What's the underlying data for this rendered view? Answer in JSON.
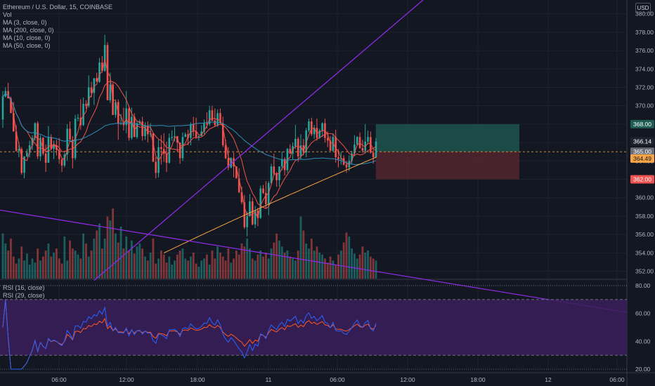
{
  "header": {
    "symbol_line": "Ethereum / U.S. Dollar, 15, COINBASE",
    "indicators": [
      "Vol",
      "MA (3, close, 0)",
      "MA (200, close, 0)",
      "MA (10, close, 0)",
      "MA (50, close, 0)"
    ],
    "rsi_indicators": [
      "RSI (16, close)",
      "RSI (29, close)"
    ],
    "currency": "USD"
  },
  "colors": {
    "background": "#131722",
    "up": "#26a69a",
    "down": "#ef5350",
    "ma3": "#ef5350",
    "ma10": "#f0534a",
    "ma50": "#2e8fb8",
    "ma200": "#f7a544",
    "trendline": "#8a2be2",
    "rsi_fill": "#3b1f5c",
    "rsi16": "#2962ff",
    "rsi29": "#ff5722",
    "target_zone": "#1f5c54",
    "stop_zone": "#5c2830"
  },
  "chart_data": [
    {
      "type": "candlestick",
      "title": "Ethereum / U.S. Dollar, 15, COINBASE",
      "y_axis": {
        "ticks": [
          "380.00",
          "378.00",
          "376.00",
          "374.00",
          "372.00",
          "370.00",
          "368.00",
          "366.00",
          "364.00",
          "362.00",
          "360.00",
          "358.00",
          "356.00",
          "354.00",
          "352.00"
        ],
        "range": [
          351.2,
          381.5
        ]
      },
      "x_axis": {
        "ticks": [
          "06:00",
          "12:00",
          "18:00",
          "11",
          "06:00",
          "12:00",
          "18:00",
          "12",
          "06:00"
        ]
      },
      "price_labels": [
        {
          "value": "368.00",
          "price": 368.0,
          "color": "#1f5c54"
        },
        {
          "value": "366.14",
          "price": 366.14,
          "color": "#1e222d"
        },
        {
          "value": "365.00",
          "price": 365.0,
          "color": "#6a6d78"
        },
        {
          "value": "364.49",
          "price": 364.49,
          "color": "#f7a544"
        },
        {
          "value": "362.00",
          "price": 362.0,
          "color": "#ef5350"
        }
      ],
      "position": {
        "entry": 365.0,
        "target": 368.0,
        "stop": 362.0
      },
      "trendlines": [
        {
          "from": [
            0,
            358.6
          ],
          "to": [
            126,
            352.6
          ]
        },
        {
          "from": [
            34,
            351.0
          ],
          "to": [
            126,
            373.9
          ]
        }
      ],
      "ohlc": [
        [
          368.5,
          371.0,
          367.6,
          371.6,
          366.8
        ],
        [
          371.0,
          371.6,
          370.9,
          372.0,
          370.2
        ],
        [
          371.6,
          370.8,
          370.8,
          372.5,
          369.4
        ],
        [
          370.8,
          369.2,
          369.2,
          371.0,
          368.7
        ],
        [
          369.2,
          367.2,
          367.2,
          370.4,
          366.9
        ],
        [
          367.2,
          365.1,
          365.0,
          367.9,
          364.4
        ],
        [
          365.1,
          365.3,
          364.4,
          366.0,
          363.8
        ],
        [
          365.3,
          362.7,
          362.5,
          365.5,
          362.0
        ],
        [
          362.7,
          364.5,
          362.1,
          364.5,
          361.0
        ],
        [
          364.5,
          364.9,
          364.4,
          365.3,
          364.0
        ],
        [
          364.9,
          365.7,
          364.4,
          366.2,
          363.8
        ],
        [
          365.7,
          366.5,
          365.2,
          366.8,
          363.9
        ],
        [
          366.5,
          368.1,
          366.2,
          368.2,
          365.2
        ],
        [
          368.1,
          364.5,
          364.2,
          368.3,
          363.9
        ],
        [
          364.5,
          366.5,
          364.0,
          366.8,
          363.3
        ],
        [
          366.5,
          364.8,
          364.6,
          366.6,
          364.4
        ],
        [
          364.8,
          363.8,
          362.8,
          365.8,
          362.6
        ],
        [
          363.8,
          366.6,
          363.8,
          367.8,
          363.1
        ],
        [
          366.6,
          365.3,
          365.3,
          366.9,
          365.0
        ],
        [
          365.3,
          365.7,
          364.2,
          366.2,
          363.9
        ],
        [
          365.7,
          365.2,
          364.6,
          366.3,
          362.8
        ],
        [
          365.2,
          364.2,
          363.7,
          366.5,
          362.1
        ],
        [
          364.2,
          363.5,
          362.8,
          364.2,
          362.3
        ],
        [
          363.5,
          364.7,
          363.3,
          364.9,
          363.0
        ],
        [
          364.7,
          367.5,
          364.0,
          368.0,
          363.5
        ],
        [
          367.5,
          366.3,
          366.3,
          368.3,
          366.0
        ],
        [
          366.3,
          364.3,
          363.2,
          366.7,
          362.9
        ],
        [
          364.3,
          368.6,
          364.1,
          369.0,
          363.9
        ],
        [
          368.6,
          368.7,
          368.3,
          369.1,
          367.9
        ],
        [
          368.7,
          367.9,
          367.4,
          370.7,
          367.2
        ],
        [
          367.9,
          370.2,
          367.8,
          370.9,
          367.6
        ],
        [
          370.2,
          370.0,
          369.7,
          370.6,
          369.5
        ],
        [
          370.0,
          372.0,
          369.8,
          373.3,
          369.6
        ],
        [
          372.0,
          371.4,
          370.9,
          372.6,
          370.7
        ],
        [
          371.4,
          373.0,
          370.1,
          373.0,
          369.7
        ],
        [
          373.0,
          372.6,
          372.6,
          373.6,
          371.5
        ],
        [
          372.6,
          374.7,
          372.5,
          375.2,
          372.2
        ],
        [
          374.7,
          373.8,
          373.6,
          375.4,
          373.5
        ],
        [
          373.8,
          376.6,
          373.7,
          377.7,
          373.1
        ],
        [
          376.6,
          370.6,
          370.6,
          376.9,
          370.3
        ],
        [
          370.6,
          372.3,
          370.3,
          373.6,
          368.3
        ],
        [
          372.3,
          369.0,
          369.0,
          372.5,
          368.3
        ],
        [
          369.0,
          370.4,
          368.7,
          370.7,
          368.0
        ],
        [
          370.4,
          368.1,
          366.3,
          370.7,
          365.9
        ],
        [
          368.1,
          368.1,
          367.9,
          369.1,
          367.8
        ],
        [
          368.1,
          367.9,
          367.3,
          369.8,
          366.8
        ],
        [
          367.9,
          369.7,
          367.0,
          371.6,
          366.5
        ],
        [
          369.7,
          366.5,
          366.2,
          370.0,
          366.0
        ],
        [
          366.5,
          368.8,
          366.3,
          369.8,
          366.2
        ],
        [
          368.8,
          366.6,
          366.6,
          369.2,
          366.2
        ],
        [
          366.6,
          368.1,
          366.4,
          368.4,
          366.3
        ],
        [
          368.1,
          368.3,
          367.9,
          368.5,
          367.3
        ],
        [
          368.3,
          366.7,
          366.2,
          368.8,
          364.7
        ],
        [
          366.7,
          367.8,
          366.3,
          368.2,
          365.7
        ],
        [
          367.8,
          366.9,
          366.0,
          368.3,
          365.2
        ],
        [
          366.9,
          367.0,
          366.6,
          368.1,
          366.4
        ],
        [
          367.0,
          363.9,
          363.9,
          367.0,
          362.7
        ],
        [
          363.9,
          362.7,
          362.1,
          364.4,
          360.5
        ],
        [
          362.7,
          365.5,
          362.2,
          366.3,
          362.1
        ],
        [
          365.5,
          365.3,
          363.6,
          366.8,
          363.5
        ],
        [
          365.3,
          364.8,
          363.9,
          367.0,
          363.5
        ],
        [
          364.8,
          363.8,
          362.8,
          366.1,
          362.0
        ],
        [
          363.8,
          366.5,
          363.7,
          367.0,
          363.5
        ],
        [
          366.5,
          366.6,
          366.2,
          367.3,
          365.4
        ],
        [
          366.6,
          366.7,
          366.1,
          367.7,
          365.7
        ],
        [
          366.7,
          366.0,
          365.0,
          366.7,
          364.1
        ],
        [
          366.0,
          364.3,
          363.7,
          366.0,
          363.4
        ],
        [
          364.3,
          366.6,
          364.0,
          367.1,
          363.9
        ],
        [
          366.6,
          366.9,
          366.7,
          367.1,
          366.2
        ],
        [
          366.9,
          366.5,
          365.7,
          367.4,
          365.2
        ],
        [
          366.5,
          368.0,
          365.7,
          368.2,
          364.3
        ],
        [
          368.0,
          367.2,
          366.7,
          368.8,
          366.3
        ],
        [
          367.2,
          366.6,
          366.4,
          368.7,
          366.1
        ],
        [
          366.6,
          366.7,
          366.2,
          366.8,
          365.8
        ],
        [
          366.7,
          367.2,
          366.7,
          367.9,
          365.4
        ],
        [
          367.2,
          368.1,
          366.9,
          368.5,
          366.5
        ],
        [
          368.1,
          368.0,
          367.5,
          369.3,
          367.2
        ],
        [
          368.0,
          369.5,
          367.8,
          370.0,
          367.4
        ],
        [
          369.5,
          368.4,
          368.3,
          370.0,
          368.0
        ],
        [
          368.4,
          367.9,
          367.7,
          369.7,
          367.5
        ],
        [
          367.9,
          369.2,
          367.7,
          369.6,
          367.6
        ],
        [
          369.2,
          368.1,
          368.0,
          369.7,
          366.9
        ],
        [
          368.1,
          365.7,
          365.5,
          368.8,
          365.3
        ],
        [
          365.7,
          364.3,
          364.2,
          366.3,
          364.1
        ],
        [
          364.3,
          363.3,
          363.0,
          365.5,
          362.6
        ],
        [
          363.3,
          364.3,
          363.2,
          364.4,
          363.1
        ],
        [
          364.3,
          363.4,
          362.2,
          364.9,
          361.4
        ],
        [
          363.4,
          362.1,
          362.1,
          363.4,
          361.3
        ],
        [
          362.1,
          360.6,
          360.5,
          363.2,
          360.1
        ],
        [
          360.6,
          359.5,
          359.3,
          361.2,
          357.3
        ],
        [
          359.5,
          356.8,
          356.6,
          360.3,
          356.4
        ],
        [
          356.8,
          358.0,
          355.8,
          358.5,
          355.5
        ],
        [
          358.0,
          359.6,
          357.9,
          360.4,
          357.4
        ],
        [
          359.6,
          357.1,
          357.0,
          360.0,
          356.6
        ],
        [
          357.1,
          358.6,
          356.7,
          359.1,
          356.5
        ],
        [
          358.6,
          357.8,
          356.9,
          358.9,
          356.7
        ],
        [
          357.8,
          361.0,
          357.7,
          361.3,
          356.6
        ],
        [
          361.0,
          360.5,
          360.4,
          361.4,
          360.2
        ],
        [
          360.5,
          359.3,
          358.8,
          361.8,
          358.7
        ],
        [
          359.3,
          361.6,
          358.1,
          361.8,
          357.7
        ],
        [
          361.6,
          363.4,
          361.4,
          363.7,
          360.7
        ],
        [
          363.4,
          362.6,
          362.4,
          364.8,
          362.1
        ],
        [
          362.6,
          361.9,
          361.2,
          362.8,
          361.0
        ],
        [
          361.9,
          363.4,
          361.2,
          363.4,
          360.9
        ],
        [
          363.4,
          364.2,
          363.0,
          365.0,
          362.7
        ],
        [
          364.2,
          363.0,
          362.4,
          364.4,
          362.1
        ],
        [
          363.0,
          365.3,
          362.7,
          365.4,
          362.1
        ],
        [
          365.3,
          364.8,
          364.8,
          365.8,
          364.6
        ],
        [
          364.8,
          365.6,
          364.1,
          366.0,
          363.4
        ],
        [
          365.6,
          366.4,
          365.3,
          367.9,
          364.9
        ],
        [
          366.4,
          364.5,
          363.9,
          366.6,
          363.8
        ],
        [
          364.5,
          365.7,
          364.2,
          366.9,
          363.6
        ],
        [
          365.7,
          364.9,
          364.6,
          366.4,
          364.3
        ],
        [
          364.9,
          367.3,
          364.4,
          367.6,
          363.5
        ],
        [
          367.3,
          368.3,
          367.1,
          368.6,
          365.8
        ],
        [
          368.3,
          366.9,
          366.7,
          368.7,
          366.5
        ],
        [
          366.9,
          367.6,
          366.4,
          367.9,
          366.2
        ],
        [
          367.6,
          366.5,
          366.2,
          368.6,
          365.9
        ],
        [
          366.5,
          367.3,
          366.4,
          367.5,
          366.1
        ],
        [
          367.3,
          368.1,
          366.6,
          368.2,
          366.3
        ],
        [
          368.1,
          366.5,
          366.0,
          368.6,
          365.5
        ],
        [
          366.5,
          366.2,
          365.5,
          367.2,
          365.1
        ],
        [
          366.2,
          365.1,
          365.1,
          366.7,
          364.8
        ],
        [
          365.1,
          366.6,
          365.0,
          367.0,
          364.5
        ],
        [
          366.6,
          364.4,
          363.8,
          367.4,
          363.2
        ],
        [
          364.4,
          364.2,
          363.3,
          365.3,
          363.0
        ],
        [
          364.2,
          364.3,
          363.6,
          365.0,
          362.8
        ],
        [
          364.3,
          363.6,
          363.5,
          364.6,
          362.6
        ],
        [
          363.6,
          363.3,
          362.7,
          364.0,
          362.4
        ],
        [
          363.3,
          364.0,
          362.9,
          364.6,
          362.2
        ],
        [
          364.0,
          364.8,
          363.6,
          365.1,
          363.1
        ],
        [
          364.8,
          365.8,
          364.5,
          366.8,
          364.2
        ],
        [
          365.8,
          366.6,
          365.6,
          366.7,
          365.3
        ],
        [
          366.6,
          365.4,
          365.3,
          367.1,
          365.2
        ],
        [
          365.4,
          365.1,
          364.9,
          366.3,
          364.7
        ],
        [
          365.1,
          366.1,
          364.8,
          368.0,
          364.3
        ],
        [
          366.1,
          366.6,
          365.8,
          367.3,
          365.3
        ],
        [
          366.6,
          364.9,
          364.8,
          367.2,
          364.4
        ],
        [
          364.9,
          364.4,
          363.7,
          365.2,
          363.4
        ],
        [
          364.4,
          366.1,
          364.3,
          366.5,
          364.2
        ]
      ],
      "volume": [
        45,
        35,
        28,
        40,
        22,
        15,
        20,
        32,
        18,
        25,
        14,
        20,
        16,
        30,
        18,
        22,
        28,
        35,
        22,
        26,
        30,
        20,
        15,
        42,
        18,
        38,
        30,
        28,
        24,
        20,
        45,
        35,
        22,
        28,
        40,
        48,
        55,
        30,
        40,
        62,
        58,
        70,
        45,
        36,
        52,
        30,
        42,
        28,
        38,
        25,
        32,
        35,
        30,
        22,
        18,
        26,
        40,
        15,
        20,
        28,
        24,
        16,
        22,
        14,
        18,
        24,
        28,
        30,
        20,
        18,
        22,
        26,
        15,
        12,
        18,
        20,
        24,
        14,
        28,
        20,
        32,
        26,
        22,
        18,
        30,
        16,
        20,
        28,
        24,
        35,
        32,
        40,
        30,
        20,
        18,
        24,
        28,
        22,
        26,
        20,
        30,
        36,
        45,
        38,
        32,
        26,
        28,
        22,
        20,
        18,
        28,
        62,
        48,
        35,
        30,
        40,
        28,
        32,
        26,
        24,
        20,
        16,
        22,
        18,
        14,
        24,
        28,
        36,
        46,
        42,
        30,
        25,
        20,
        24,
        32,
        26,
        28,
        22,
        20,
        18
      ]
    },
    {
      "type": "line",
      "title": "RSI (16, close)",
      "y_axis": {
        "ticks": [
          "80.00",
          "60.00",
          "40.00",
          "20.00"
        ],
        "range": [
          18,
          84
        ],
        "bands": [
          70,
          30
        ]
      },
      "series": [
        {
          "name": "RSI (16, close)",
          "color": "#2962ff"
        },
        {
          "name": "RSI (29, close)",
          "color": "#ff5722"
        }
      ]
    }
  ]
}
